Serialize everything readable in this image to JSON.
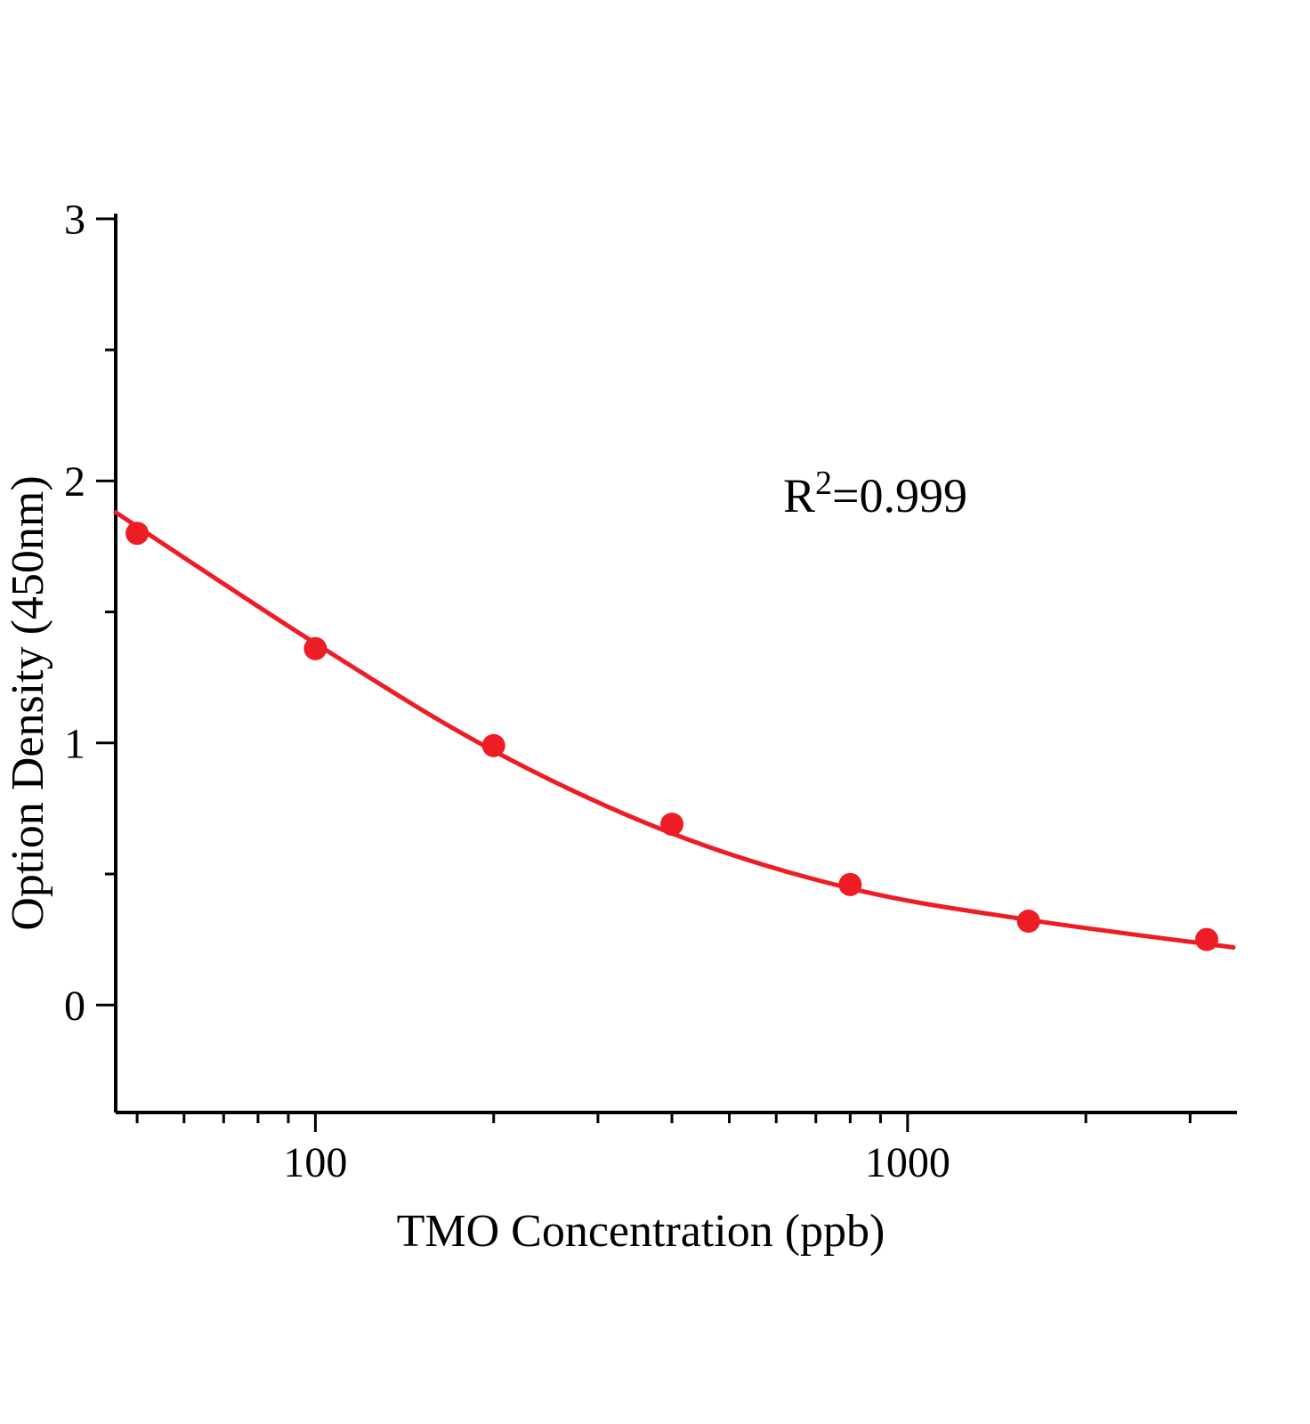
{
  "chart_data": {
    "type": "scatter",
    "title": "",
    "xlabel": "TMO Concentration（ppb）",
    "ylabel": "Option Density（450nm）",
    "annotation": {
      "base": "R",
      "sup": "2",
      "rest": "=0.999"
    },
    "x_scale": "log",
    "xlim": [
      46,
      3600
    ],
    "ylim": [
      -0.41,
      3.02
    ],
    "x": [
      50,
      100,
      200,
      400,
      800,
      1600,
      3200
    ],
    "y": [
      1.8,
      1.36,
      0.99,
      0.69,
      0.46,
      0.32,
      0.25
    ],
    "fit_curve": {
      "x": [
        46,
        100,
        200,
        400,
        800,
        1600,
        3550
      ],
      "y": [
        1.88,
        1.38,
        0.97,
        0.655,
        0.445,
        0.325,
        0.22
      ]
    },
    "x_major_ticks": [
      100,
      1000
    ],
    "x_major_labels": [
      "100",
      "1000"
    ],
    "x_minor_ticks": [
      50,
      60,
      70,
      80,
      90,
      200,
      300,
      400,
      500,
      600,
      700,
      800,
      900,
      2000,
      3000
    ],
    "y_major_ticks": [
      0,
      1,
      2,
      3
    ],
    "y_major_labels": [
      "0",
      "1",
      "2",
      "3"
    ],
    "y_minor_ticks": [
      0.5,
      1.5,
      2.5
    ],
    "grid": false,
    "legend": null,
    "colors": {
      "point": "#ee1c25",
      "fit_line": "#ee1c25",
      "axis": "#000000",
      "background": "#ffffff"
    }
  }
}
